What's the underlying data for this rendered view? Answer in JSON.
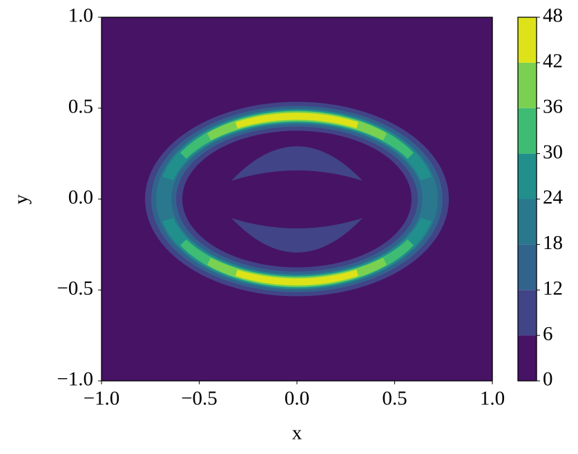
{
  "chart_data": {
    "type": "contour",
    "xlabel": "x",
    "ylabel": "y",
    "xlim": [
      -1,
      1
    ],
    "ylim": [
      -1,
      1
    ],
    "xticks": [
      {
        "value": -1,
        "label": "−1.0"
      },
      {
        "value": -0.5,
        "label": "−0.5"
      },
      {
        "value": 0,
        "label": "0.0"
      },
      0.5,
      {
        "value": 1,
        "label": "1.0"
      }
    ],
    "yticks": [
      {
        "value": -1,
        "label": "−1.0"
      },
      {
        "value": -0.5,
        "label": "−0.5"
      },
      {
        "value": 0,
        "label": "0.0"
      },
      0.5,
      {
        "value": 1,
        "label": "1.0"
      }
    ],
    "levels": [
      0,
      6,
      12,
      18,
      24,
      30,
      36,
      42,
      48
    ],
    "colors": [
      "#471365",
      "#414487",
      "#31648d",
      "#2a788e",
      "#21908d",
      "#3fbc73",
      "#7ad151",
      "#dde318"
    ]
  }
}
